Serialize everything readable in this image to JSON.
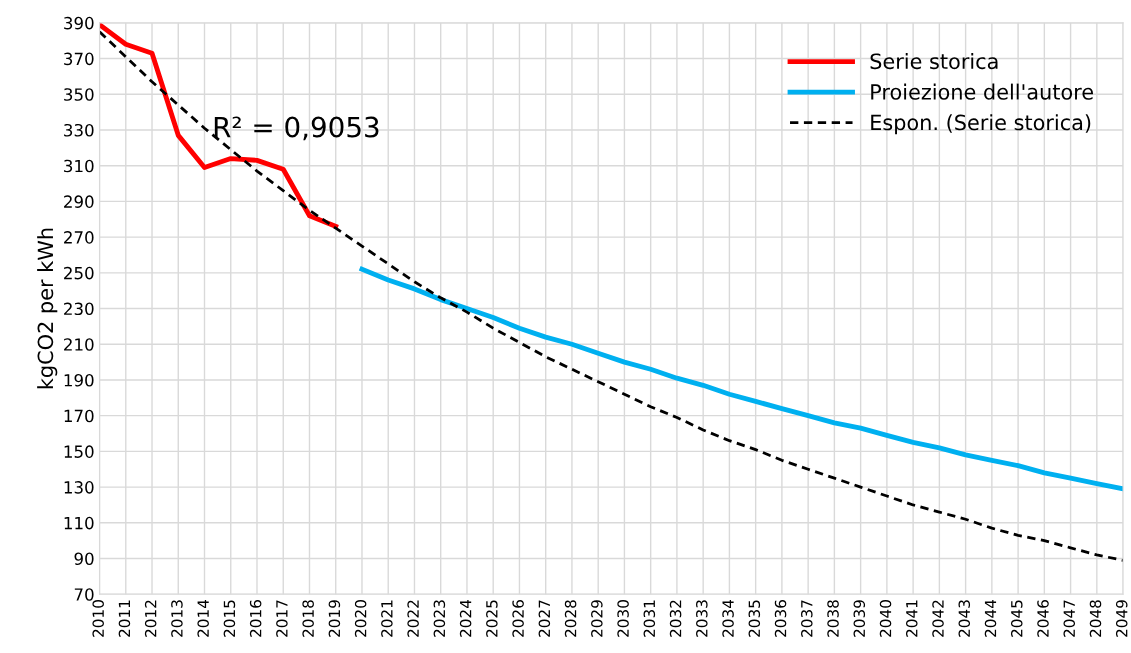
{
  "chart_data": {
    "type": "line",
    "ylabel": "kgCO2 per kWh",
    "categories": [
      "2010",
      "2011",
      "2012",
      "2013",
      "2014",
      "2015",
      "2016",
      "2017",
      "2018",
      "2019",
      "2020",
      "2021",
      "2022",
      "2023",
      "2024",
      "2025",
      "2026",
      "2027",
      "2028",
      "2029",
      "2030",
      "2031",
      "2032",
      "2033",
      "2034",
      "2035",
      "2036",
      "2037",
      "2038",
      "2039",
      "2040",
      "2041",
      "2042",
      "2043",
      "2044",
      "2045",
      "2046",
      "2047",
      "2048",
      "2049"
    ],
    "series": [
      {
        "name": "Serie storica",
        "color": "#ff0000",
        "line_style": "solid",
        "values": [
          389,
          378,
          373,
          327,
          309,
          314,
          313,
          308,
          282,
          276,
          null,
          null,
          null,
          null,
          null,
          null,
          null,
          null,
          null,
          null,
          null,
          null,
          null,
          null,
          null,
          null,
          null,
          null,
          null,
          null,
          null,
          null,
          null,
          null,
          null,
          null,
          null,
          null,
          null,
          null
        ]
      },
      {
        "name": "Proiezione dell'autore",
        "color": "#00b0f0",
        "line_style": "solid",
        "values": [
          null,
          null,
          null,
          null,
          null,
          null,
          null,
          null,
          null,
          null,
          252,
          246,
          241,
          235,
          230,
          225,
          219,
          214,
          210,
          205,
          200,
          196,
          191,
          187,
          182,
          178,
          174,
          170,
          166,
          163,
          159,
          155,
          152,
          148,
          145,
          142,
          138,
          135,
          132,
          129
        ]
      },
      {
        "name": "Espon. (Serie storica)",
        "color": "#000000",
        "line_style": "dashed",
        "values": [
          385,
          371,
          357,
          344,
          331,
          319,
          307,
          296,
          285,
          275,
          265,
          255,
          245,
          236,
          228,
          219,
          211,
          203,
          196,
          189,
          182,
          175,
          169,
          162,
          156,
          151,
          145,
          140,
          135,
          130,
          125,
          120,
          116,
          112,
          107,
          103,
          100,
          96,
          92,
          89
        ]
      }
    ],
    "annotations": [
      "R² = 0,9053"
    ],
    "ylim": [
      70,
      390
    ],
    "yticks": [
      70,
      90,
      110,
      130,
      150,
      170,
      190,
      210,
      230,
      250,
      270,
      290,
      310,
      330,
      350,
      370,
      390
    ],
    "grid": true,
    "legend": "top right"
  }
}
